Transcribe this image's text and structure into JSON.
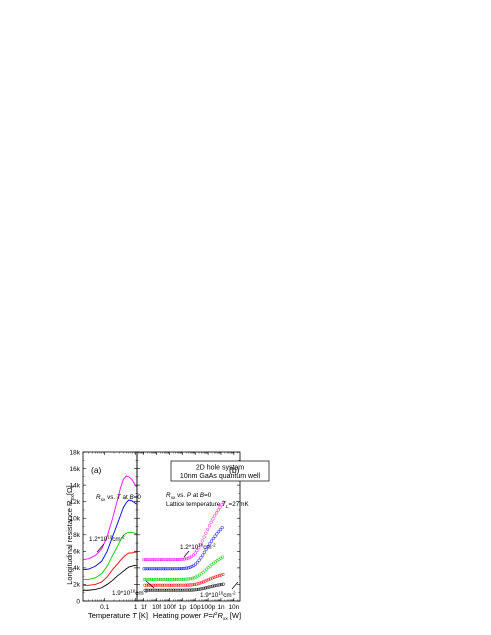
{
  "box": {
    "line1": "2D hole system",
    "line2": "10nm GaAs quantum well"
  },
  "ylabel": {
    "text": "Longitudinal resistance R",
    "sub": "xx",
    "unit": "[Ω]"
  },
  "yticks": [
    "0",
    "2k",
    "4k",
    "6k",
    "8k",
    "10k",
    "12k",
    "14k",
    "16k",
    "18k"
  ],
  "chart_data": [
    {
      "type": "line",
      "panel": "(a)",
      "xlabel_text": "Temperature ",
      "xlabel_var": "T",
      "xlabel_unit": " [K]",
      "xscale": "log",
      "xlim": [
        0.02,
        1.1
      ],
      "ylim": [
        0,
        18000
      ],
      "xticks": [
        {
          "v": 0.1,
          "label": "0.1"
        },
        {
          "v": 1,
          "label": "1"
        }
      ],
      "annotation": {
        "pre": "R",
        "sub": "xx",
        "mid": " vs. ",
        "var": "T",
        "post": " at ",
        "var2": "B",
        "tail": "=0"
      },
      "density_top": {
        "base": "1.2*10",
        "exp1": "10",
        "mid": "cm",
        "exp2": "-2"
      },
      "density_bottom": {
        "base": "1.9*10",
        "exp1": "10",
        "mid": "cm",
        "exp2": "-2"
      },
      "series": [
        {
          "color": "#ff00ff",
          "x": [
            0.02,
            0.03,
            0.05,
            0.08,
            0.12,
            0.18,
            0.25,
            0.32,
            0.4,
            0.5,
            0.6,
            0.75,
            0.9,
            1.05
          ],
          "y": [
            5000,
            5100,
            5500,
            6300,
            7800,
            10000,
            12000,
            13600,
            14700,
            15100,
            15000,
            14700,
            14200,
            13800
          ]
        },
        {
          "color": "#0000ff",
          "x": [
            0.02,
            0.03,
            0.05,
            0.08,
            0.12,
            0.18,
            0.25,
            0.32,
            0.4,
            0.5,
            0.6,
            0.75,
            0.9,
            1.05
          ],
          "y": [
            3800,
            3850,
            4200,
            4800,
            6000,
            7800,
            9200,
            10300,
            11300,
            11900,
            12200,
            12100,
            11900,
            11700
          ]
        },
        {
          "color": "#00cc00",
          "x": [
            0.02,
            0.03,
            0.05,
            0.08,
            0.12,
            0.18,
            0.25,
            0.32,
            0.4,
            0.5,
            0.6,
            0.75,
            0.9,
            1.05
          ],
          "y": [
            2600,
            2600,
            2800,
            3300,
            4200,
            5500,
            6500,
            7300,
            7900,
            8200,
            8300,
            8300,
            8200,
            8100
          ]
        },
        {
          "color": "#ff0000",
          "x": [
            0.02,
            0.03,
            0.05,
            0.08,
            0.12,
            0.18,
            0.25,
            0.32,
            0.4,
            0.5,
            0.6,
            0.75,
            0.9,
            1.05
          ],
          "y": [
            1900,
            1900,
            2000,
            2300,
            2900,
            3800,
            4400,
            4900,
            5300,
            5600,
            5800,
            5800,
            5900,
            5900
          ]
        },
        {
          "color": "#000000",
          "x": [
            0.02,
            0.03,
            0.05,
            0.08,
            0.12,
            0.18,
            0.25,
            0.32,
            0.4,
            0.5,
            0.6,
            0.75,
            0.9,
            1.05
          ],
          "y": [
            1300,
            1300,
            1400,
            1600,
            2000,
            2500,
            3000,
            3300,
            3600,
            3900,
            4100,
            4200,
            4300,
            4300
          ]
        }
      ]
    },
    {
      "type": "scatter",
      "panel": "(b)",
      "xlabel_text": "Heating power ",
      "xlabel_var": "P=I",
      "xlabel_sup": "2",
      "xlabel_var2": "R",
      "xlabel_sub": "xx",
      "xlabel_unit": " [W]",
      "xscale": "log",
      "xlim": [
        3e-16,
        3e-08
      ],
      "ylim": [
        0,
        18000
      ],
      "xticks": [
        {
          "v": 1e-15,
          "label": "1f"
        },
        {
          "v": 1e-14,
          "label": "10f"
        },
        {
          "v": 1e-13,
          "label": "100f"
        },
        {
          "v": 1e-12,
          "label": "1p"
        },
        {
          "v": 1e-11,
          "label": "10p"
        },
        {
          "v": 1e-10,
          "label": "100p"
        },
        {
          "v": 1e-09,
          "label": "1n"
        },
        {
          "v": 1e-08,
          "label": "10n"
        }
      ],
      "annotation": {
        "pre": "R",
        "sub": "xx",
        "mid": " vs. ",
        "var": "P",
        "post": " at ",
        "var2": "B",
        "tail": "=0"
      },
      "annotation2": {
        "text": "Lattice temperature ",
        "var": "T",
        "sub": "L",
        "tail": "=27mK"
      },
      "density_top": {
        "base": "1.2*10",
        "exp1": "10",
        "mid": "cm",
        "exp2": "-2"
      },
      "density_bottom": {
        "base": "1.9*10",
        "exp1": "10",
        "mid": "cm",
        "exp2": "-2"
      },
      "series": [
        {
          "color": "#ff00ff",
          "base": 5000,
          "amp": 7000,
          "xs": 1.4e-11,
          "sample_offset": 0
        },
        {
          "color": "#0000ff",
          "base": 3900,
          "amp": 5200,
          "xs": 1.6e-11,
          "sample_offset": 1
        },
        {
          "color": "#00cc00",
          "base": 2600,
          "amp": 2800,
          "xs": 1.8e-11,
          "sample_offset": 2
        },
        {
          "color": "#ff0000",
          "base": 1900,
          "amp": 1350,
          "xs": 2e-11,
          "sample_offset": 3
        },
        {
          "color": "#000000",
          "base": 1300,
          "amp": 750,
          "xs": 2.2e-11,
          "sample_offset": 4
        }
      ]
    }
  ]
}
